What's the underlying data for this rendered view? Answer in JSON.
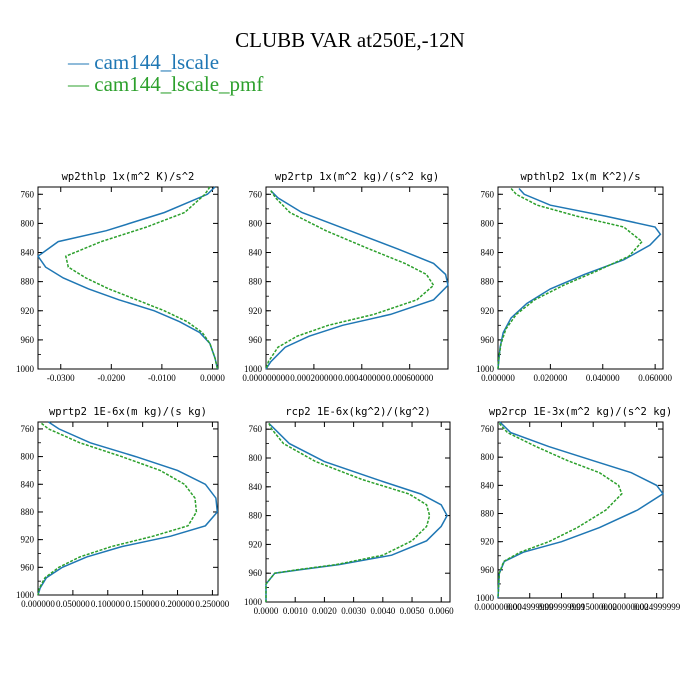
{
  "title": "CLUBB VAR at250E,-12N",
  "legend": [
    {
      "name": "cam144_lscale",
      "color": "#1f77b4"
    },
    {
      "name": "cam144_lscale_pmf",
      "color": "#2ca02c"
    }
  ],
  "chart_data": [
    {
      "type": "line",
      "title": "wp2thlp  1x(m^2 K)/s^2",
      "yreverse": true,
      "ylim": [
        1000,
        750
      ],
      "yticks": [
        760,
        800,
        840,
        880,
        920,
        960,
        1000
      ],
      "xlim": [
        -0.0345,
        0.0011
      ],
      "xticks": [
        -0.03,
        -0.02,
        -0.01,
        0.0
      ],
      "xtick_labels": [
        "-0.0300",
        "-0.0200",
        "-0.0100",
        "0.0000"
      ],
      "series": [
        {
          "name": "cam144_lscale",
          "points": [
            [
              0.0005,
              750
            ],
            [
              -0.001,
              760
            ],
            [
              -0.0095,
              785
            ],
            [
              -0.021,
              810
            ],
            [
              -0.0305,
              825
            ],
            [
              -0.0345,
              845
            ],
            [
              -0.033,
              860
            ],
            [
              -0.0295,
              875
            ],
            [
              -0.0245,
              890
            ],
            [
              -0.0185,
              905
            ],
            [
              -0.0115,
              920
            ],
            [
              -0.0065,
              935
            ],
            [
              -0.0025,
              950
            ],
            [
              -0.0005,
              965
            ],
            [
              0.0005,
              985
            ],
            [
              0.001,
              1000
            ]
          ]
        },
        {
          "name": "cam144_lscale_pmf",
          "points": [
            [
              -0.0005,
              750
            ],
            [
              -0.0015,
              760
            ],
            [
              -0.0055,
              785
            ],
            [
              -0.013,
              805
            ],
            [
              -0.022,
              825
            ],
            [
              -0.029,
              845
            ],
            [
              -0.0285,
              860
            ],
            [
              -0.025,
              875
            ],
            [
              -0.0205,
              890
            ],
            [
              -0.015,
              905
            ],
            [
              -0.0095,
              920
            ],
            [
              -0.005,
              935
            ],
            [
              -0.002,
              950
            ],
            [
              -0.0005,
              965
            ],
            [
              0.0005,
              985
            ],
            [
              0.001,
              1000
            ]
          ]
        }
      ]
    },
    {
      "type": "line",
      "title": "wp2rtp  1x(m^2 kg)/(s^2 kg)",
      "yreverse": true,
      "ylim": [
        1000,
        750
      ],
      "yticks": [
        760,
        800,
        840,
        880,
        920,
        960,
        1000
      ],
      "xlim": [
        0.0,
        0.00076
      ],
      "xticks": [
        0.0,
        0.0002,
        0.0004,
        0.0006
      ],
      "xtick_labels": [
        "0.000000000",
        "0.000200000",
        "0.000400000",
        "0.000600000"
      ],
      "series": [
        {
          "name": "cam144_lscale",
          "points": [
            [
              2e-05,
              755
            ],
            [
              5e-05,
              765
            ],
            [
              0.00015,
              785
            ],
            [
              0.00035,
              810
            ],
            [
              0.00055,
              835
            ],
            [
              0.0007,
              855
            ],
            [
              0.00075,
              870
            ],
            [
              0.00076,
              885
            ],
            [
              0.0007,
              905
            ],
            [
              0.00052,
              925
            ],
            [
              0.00032,
              940
            ],
            [
              0.00018,
              955
            ],
            [
              8e-05,
              970
            ],
            [
              2e-05,
              990
            ],
            [
              0.0,
              1000
            ]
          ]
        },
        {
          "name": "cam144_lscale_pmf",
          "points": [
            [
              2e-05,
              755
            ],
            [
              4e-05,
              765
            ],
            [
              0.0001,
              785
            ],
            [
              0.00025,
              810
            ],
            [
              0.00043,
              835
            ],
            [
              0.00058,
              855
            ],
            [
              0.00067,
              870
            ],
            [
              0.0007,
              885
            ],
            [
              0.00063,
              905
            ],
            [
              0.00045,
              925
            ],
            [
              0.00026,
              940
            ],
            [
              0.00013,
              955
            ],
            [
              5e-05,
              970
            ],
            [
              1e-05,
              990
            ],
            [
              0.0,
              1000
            ]
          ]
        }
      ]
    },
    {
      "type": "line",
      "title": "wpthlp2  1x(m K^2)/s",
      "yreverse": true,
      "ylim": [
        1000,
        750
      ],
      "yticks": [
        760,
        800,
        840,
        880,
        920,
        960,
        1000
      ],
      "xlim": [
        0.0,
        0.063
      ],
      "xticks": [
        0.0,
        0.02,
        0.04,
        0.06
      ],
      "xtick_labels": [
        "0.000000",
        "0.020000",
        "0.040000",
        "0.060000"
      ],
      "series": [
        {
          "name": "cam144_lscale",
          "points": [
            [
              0.008,
              752
            ],
            [
              0.01,
              760
            ],
            [
              0.02,
              775
            ],
            [
              0.041,
              790
            ],
            [
              0.06,
              805
            ],
            [
              0.062,
              815
            ],
            [
              0.058,
              830
            ],
            [
              0.048,
              850
            ],
            [
              0.033,
              870
            ],
            [
              0.02,
              890
            ],
            [
              0.011,
              910
            ],
            [
              0.005,
              930
            ],
            [
              0.002,
              950
            ],
            [
              0.0008,
              970
            ],
            [
              0.0,
              1000
            ]
          ]
        },
        {
          "name": "cam144_lscale_pmf",
          "points": [
            [
              0.005,
              752
            ],
            [
              0.007,
              760
            ],
            [
              0.015,
              775
            ],
            [
              0.03,
              790
            ],
            [
              0.048,
              805
            ],
            [
              0.055,
              825
            ],
            [
              0.05,
              845
            ],
            [
              0.038,
              865
            ],
            [
              0.025,
              885
            ],
            [
              0.014,
              905
            ],
            [
              0.007,
              925
            ],
            [
              0.003,
              945
            ],
            [
              0.0012,
              965
            ],
            [
              0.0003,
              985
            ],
            [
              0.0,
              1000
            ]
          ]
        }
      ]
    },
    {
      "type": "line",
      "title": "wprtp2  1E-6x(m kg)/(s kg)",
      "yreverse": true,
      "ylim": [
        1000,
        750
      ],
      "yticks": [
        760,
        800,
        840,
        880,
        920,
        960,
        1000
      ],
      "xlim": [
        0.0,
        0.258
      ],
      "xticks": [
        0.0,
        0.05,
        0.1,
        0.15,
        0.2,
        0.25
      ],
      "xtick_labels": [
        "0.000000",
        "0.050000",
        "0.100000",
        "0.150000",
        "0.200000",
        "0.250000"
      ],
      "series": [
        {
          "name": "cam144_lscale",
          "points": [
            [
              0.015,
              750
            ],
            [
              0.03,
              760
            ],
            [
              0.075,
              780
            ],
            [
              0.14,
              800
            ],
            [
              0.2,
              820
            ],
            [
              0.24,
              840
            ],
            [
              0.255,
              860
            ],
            [
              0.257,
              880
            ],
            [
              0.24,
              900
            ],
            [
              0.19,
              915
            ],
            [
              0.12,
              930
            ],
            [
              0.07,
              945
            ],
            [
              0.035,
              960
            ],
            [
              0.012,
              975
            ],
            [
              0.003,
              990
            ],
            [
              0.0,
              1000
            ]
          ]
        },
        {
          "name": "cam144_lscale_pmf",
          "points": [
            [
              0.005,
              752
            ],
            [
              0.015,
              760
            ],
            [
              0.06,
              780
            ],
            [
              0.12,
              800
            ],
            [
              0.175,
              820
            ],
            [
              0.21,
              840
            ],
            [
              0.225,
              860
            ],
            [
              0.227,
              880
            ],
            [
              0.215,
              900
            ],
            [
              0.165,
              915
            ],
            [
              0.105,
              930
            ],
            [
              0.06,
              945
            ],
            [
              0.03,
              960
            ],
            [
              0.01,
              975
            ],
            [
              0.002,
              990
            ],
            [
              0.0,
              1000
            ]
          ]
        }
      ]
    },
    {
      "type": "line",
      "title": "rcp2  1E-6x(kg^2)/(kg^2)",
      "yreverse": true,
      "ylim": [
        1000,
        750
      ],
      "yticks": [
        760,
        800,
        840,
        880,
        920,
        960,
        1000
      ],
      "xlim": [
        0.0,
        0.0063
      ],
      "xticks": [
        0.0,
        0.001,
        0.002,
        0.003,
        0.004,
        0.005,
        0.006
      ],
      "xtick_labels": [
        "0.0000",
        "0.0010",
        "0.0020",
        "0.0030",
        "0.0040",
        "0.0050",
        "0.0060"
      ],
      "series": [
        {
          "name": "cam144_lscale",
          "points": [
            [
              0.0001,
              752
            ],
            [
              0.0003,
              760
            ],
            [
              0.0008,
              780
            ],
            [
              0.002,
              805
            ],
            [
              0.0038,
              830
            ],
            [
              0.0053,
              850
            ],
            [
              0.006,
              865
            ],
            [
              0.0062,
              880
            ],
            [
              0.006,
              895
            ],
            [
              0.0055,
              915
            ],
            [
              0.0043,
              935
            ],
            [
              0.0025,
              948
            ],
            [
              0.0012,
              955
            ],
            [
              0.0003,
              960
            ],
            [
              0.0,
              975
            ],
            [
              0.0,
              1000
            ]
          ]
        },
        {
          "name": "cam144_lscale_pmf",
          "points": [
            [
              0.0001,
              752
            ],
            [
              0.0002,
              760
            ],
            [
              0.0006,
              780
            ],
            [
              0.0017,
              805
            ],
            [
              0.0033,
              830
            ],
            [
              0.0049,
              850
            ],
            [
              0.0055,
              865
            ],
            [
              0.0056,
              880
            ],
            [
              0.0055,
              895
            ],
            [
              0.005,
              915
            ],
            [
              0.004,
              935
            ],
            [
              0.0024,
              948
            ],
            [
              0.0011,
              955
            ],
            [
              0.0003,
              960
            ],
            [
              0.0,
              975
            ],
            [
              0.0,
              1000
            ]
          ]
        }
      ]
    },
    {
      "type": "line",
      "title": "wp2rcp  1E-3x(m^2 kg)/(s^2 kg)",
      "yreverse": true,
      "ylim": [
        1000,
        750
      ],
      "yticks": [
        760,
        800,
        840,
        880,
        920,
        960,
        1000
      ],
      "xlim": [
        0.0,
        0.026
      ],
      "xticks": [
        0.0,
        0.005,
        0.01,
        0.015,
        0.02,
        0.025
      ],
      "xtick_labels": [
        "0.000000000",
        "0.004999999",
        "0.009999999",
        "0.015000000",
        "0.020000000",
        "0.024999999"
      ],
      "series": [
        {
          "name": "cam144_lscale",
          "points": [
            [
              0.0003,
              750
            ],
            [
              0.002,
              765
            ],
            [
              0.008,
              785
            ],
            [
              0.015,
              805
            ],
            [
              0.021,
              822
            ],
            [
              0.025,
              840
            ],
            [
              0.026,
              852
            ],
            [
              0.022,
              875
            ],
            [
              0.016,
              900
            ],
            [
              0.01,
              920
            ],
            [
              0.004,
              935
            ],
            [
              0.001,
              948
            ],
            [
              0.0002,
              965
            ],
            [
              0.0,
              1000
            ]
          ]
        },
        {
          "name": "cam144_lscale_pmf",
          "points": [
            [
              0.0002,
              752
            ],
            [
              0.0015,
              765
            ],
            [
              0.006,
              785
            ],
            [
              0.011,
              805
            ],
            [
              0.016,
              822
            ],
            [
              0.019,
              840
            ],
            [
              0.0195,
              852
            ],
            [
              0.017,
              875
            ],
            [
              0.0125,
              900
            ],
            [
              0.008,
              920
            ],
            [
              0.0035,
              935
            ],
            [
              0.0009,
              948
            ],
            [
              0.0002,
              965
            ],
            [
              0.0,
              1000
            ]
          ]
        }
      ]
    }
  ]
}
